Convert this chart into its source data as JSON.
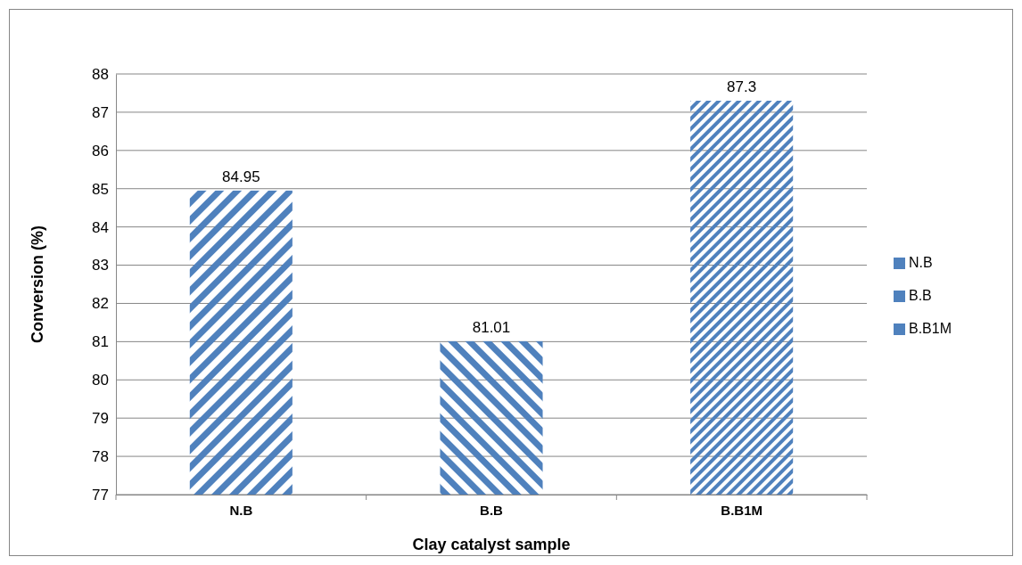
{
  "chart_data": {
    "type": "bar",
    "xlabel": "Clay catalyst sample",
    "ylabel": "Conversion (%)",
    "categories": [
      "N.B",
      "B.B",
      "B.B1M"
    ],
    "series": [
      {
        "name": "N.B",
        "color": "#4f81bd",
        "values": [
          84.95,
          null,
          null
        ]
      },
      {
        "name": "B.B",
        "color": "#4f81bd",
        "values": [
          null,
          81.01,
          null
        ]
      },
      {
        "name": "B.B1M",
        "color": "#4f81bd",
        "values": [
          null,
          null,
          87.3
        ]
      }
    ],
    "ylim": [
      77,
      88
    ],
    "yticks": [
      77,
      78,
      79,
      80,
      81,
      82,
      83,
      84,
      85,
      86,
      87,
      88
    ],
    "grid": "y",
    "legend": "right",
    "data_labels": true
  }
}
